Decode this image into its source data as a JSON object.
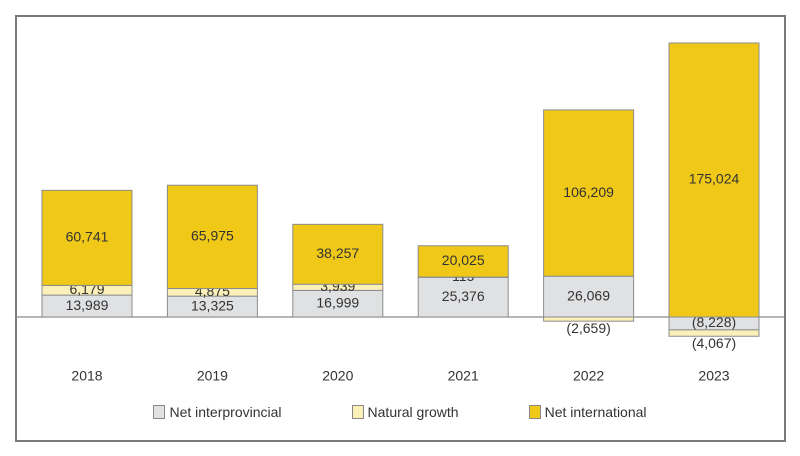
{
  "chart_data": {
    "type": "bar",
    "stacked": true,
    "categories": [
      "2018",
      "2019",
      "2020",
      "2021",
      "2022",
      "2023"
    ],
    "series": [
      {
        "name": "Net interprovincial",
        "color": "#e0e1e3",
        "values": [
          13989,
          13325,
          16999,
          25376,
          26069,
          -8228
        ],
        "labels": [
          "13,989",
          "13,325",
          "16,999",
          "25,376",
          "26,069",
          "(8,228)"
        ]
      },
      {
        "name": "Natural growth",
        "color": "#fbf0b8",
        "values": [
          6179,
          4875,
          3939,
          115,
          -2659,
          -4067
        ],
        "labels": [
          "6,179",
          "4,875",
          "3,939",
          "115",
          "(2,659)",
          "(4,067)"
        ]
      },
      {
        "name": "Net international",
        "color": "#efc818",
        "values": [
          60741,
          65975,
          38257,
          20025,
          106209,
          175024
        ],
        "labels": [
          "60,741",
          "65,975",
          "38,257",
          "20,025",
          "106,209",
          "175,024"
        ]
      }
    ],
    "legend_position": "bottom",
    "grid": false
  }
}
